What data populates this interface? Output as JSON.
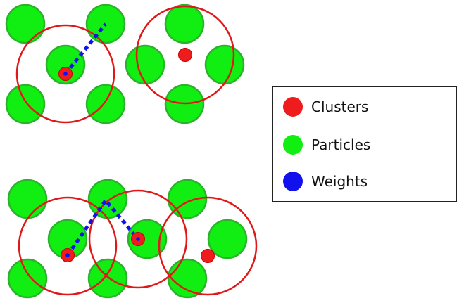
{
  "colors": {
    "cluster": "#ee1c1c",
    "particle_fill": "#11ee11",
    "particle_stroke": "#2bb12b",
    "weight": "#1111ee",
    "radius_circle": "#e01818"
  },
  "legend": {
    "items": [
      {
        "label": "Clusters",
        "color": "#ee1c1c"
      },
      {
        "label": "Particles",
        "color": "#11ee11"
      },
      {
        "label": "Weights",
        "color": "#1111ee"
      }
    ]
  }
}
